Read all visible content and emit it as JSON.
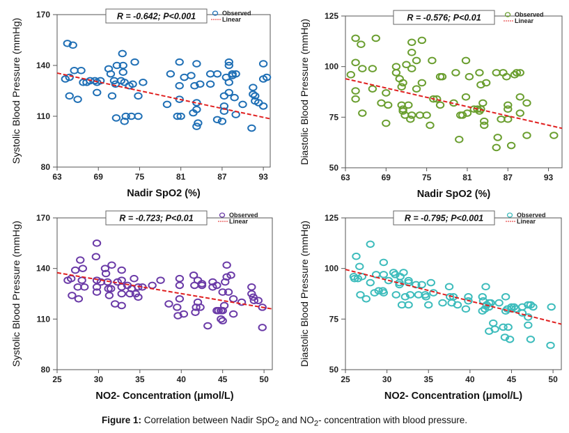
{
  "caption": {
    "label": "Figure 1:",
    "text_parts": [
      "Correlation between Nadir SpO",
      "2",
      " and NO",
      "2",
      "- concentration with blood pressure."
    ]
  },
  "legend": {
    "observed": "Observed",
    "linear": "Linear",
    "line_color": "#e02020"
  },
  "chart_data": [
    {
      "type": "scatter",
      "title": "",
      "annotation": "R = -0.642; P<0.001",
      "xlabel": "Nadir SpO2 (%)",
      "ylabel": "Systolic Blood Pressure (mmHg)",
      "xlim": [
        63,
        94
      ],
      "ylim": [
        80,
        170
      ],
      "xticks": [
        63,
        69,
        75,
        81,
        87,
        93
      ],
      "yticks": [
        80,
        110,
        140,
        170
      ],
      "color": "#1f6fb5",
      "legend": "top-right",
      "fit": {
        "x": [
          63,
          94
        ],
        "y": [
          135.5,
          108.5
        ]
      },
      "points": [
        [
          64.5,
          153
        ],
        [
          65.3,
          152
        ],
        [
          64.2,
          132
        ],
        [
          64.8,
          133
        ],
        [
          65.5,
          137
        ],
        [
          66.5,
          137
        ],
        [
          64.8,
          122
        ],
        [
          66.0,
          120
        ],
        [
          66.8,
          130
        ],
        [
          67.3,
          130
        ],
        [
          67.8,
          131
        ],
        [
          68.5,
          131
        ],
        [
          68.8,
          130
        ],
        [
          69.3,
          131
        ],
        [
          68.8,
          124
        ],
        [
          70.5,
          138
        ],
        [
          70.8,
          135
        ],
        [
          71.3,
          131
        ],
        [
          71.5,
          129
        ],
        [
          71.7,
          140
        ],
        [
          72.3,
          131
        ],
        [
          72.6,
          136
        ],
        [
          72.8,
          130
        ],
        [
          72.6,
          140
        ],
        [
          72.5,
          147
        ],
        [
          73.5,
          128
        ],
        [
          74.0,
          129
        ],
        [
          74.3,
          142
        ],
        [
          75.5,
          130
        ],
        [
          74.8,
          122
        ],
        [
          71.0,
          122
        ],
        [
          71.6,
          109
        ],
        [
          72.8,
          107
        ],
        [
          73.0,
          110
        ],
        [
          73.8,
          110
        ],
        [
          74.8,
          110
        ],
        [
          79.0,
          117
        ],
        [
          79.5,
          135
        ],
        [
          80.8,
          142
        ],
        [
          80.8,
          128
        ],
        [
          80.8,
          120
        ],
        [
          81.5,
          133
        ],
        [
          80.5,
          110
        ],
        [
          81.0,
          110
        ],
        [
          82.5,
          134
        ],
        [
          83.0,
          128
        ],
        [
          83.3,
          141
        ],
        [
          82.8,
          112
        ],
        [
          83.3,
          114
        ],
        [
          83.3,
          118
        ],
        [
          83.8,
          129
        ],
        [
          83.5,
          106
        ],
        [
          83.3,
          104
        ],
        [
          85.3,
          135
        ],
        [
          85.3,
          129
        ],
        [
          86.3,
          135
        ],
        [
          86.3,
          108
        ],
        [
          87.0,
          107
        ],
        [
          87.3,
          113
        ],
        [
          87.3,
          116
        ],
        [
          87.3,
          122
        ],
        [
          87.6,
          133
        ],
        [
          88.0,
          142
        ],
        [
          88.0,
          140
        ],
        [
          88.0,
          130
        ],
        [
          88.0,
          124
        ],
        [
          88.5,
          135
        ],
        [
          88.5,
          134
        ],
        [
          89.0,
          135
        ],
        [
          88.8,
          121
        ],
        [
          89.0,
          111
        ],
        [
          90.0,
          117
        ],
        [
          91.5,
          127
        ],
        [
          91.5,
          123
        ],
        [
          91.8,
          119
        ],
        [
          91.8,
          122
        ],
        [
          92.3,
          118
        ],
        [
          91.3,
          103
        ],
        [
          93.0,
          141
        ],
        [
          93.0,
          132
        ],
        [
          93.5,
          133
        ],
        [
          93.0,
          116
        ]
      ]
    },
    {
      "type": "scatter",
      "title": "",
      "annotation": "R = -0.576; P<0.01",
      "xlabel": "Nadir SpO2 (%)",
      "ylabel": "Diastolic Blood Pressure (mmHg)",
      "xlim": [
        63,
        95
      ],
      "ylim": [
        50,
        125
      ],
      "xticks": [
        63,
        69,
        75,
        81,
        87,
        93
      ],
      "yticks": [
        50,
        75,
        100,
        125
      ],
      "color": "#6a9e2f",
      "legend": "top-right",
      "fit": {
        "x": [
          63,
          95
        ],
        "y": [
          94,
          69.5
        ]
      },
      "points": [
        [
          64.5,
          114
        ],
        [
          65.3,
          111
        ],
        [
          67.5,
          114
        ],
        [
          63.8,
          96
        ],
        [
          64.5,
          102
        ],
        [
          65.5,
          99
        ],
        [
          67.0,
          99
        ],
        [
          64.5,
          88
        ],
        [
          64.5,
          84
        ],
        [
          65.5,
          77
        ],
        [
          67.0,
          89
        ],
        [
          68.3,
          82
        ],
        [
          69.0,
          87
        ],
        [
          69.3,
          81
        ],
        [
          69.0,
          72
        ],
        [
          70.5,
          100
        ],
        [
          70.5,
          97
        ],
        [
          71.0,
          94
        ],
        [
          71.3,
          90
        ],
        [
          71.5,
          92
        ],
        [
          71.3,
          81
        ],
        [
          71.5,
          79
        ],
        [
          71.5,
          78
        ],
        [
          71.8,
          76
        ],
        [
          72.0,
          101
        ],
        [
          72.3,
          81
        ],
        [
          72.8,
          112
        ],
        [
          72.8,
          107
        ],
        [
          72.8,
          99
        ],
        [
          72.8,
          76
        ],
        [
          72.6,
          74
        ],
        [
          73.5,
          103
        ],
        [
          73.5,
          89
        ],
        [
          74.0,
          76
        ],
        [
          74.3,
          113
        ],
        [
          74.3,
          92
        ],
        [
          75.0,
          76
        ],
        [
          75.5,
          71
        ],
        [
          75.8,
          103
        ],
        [
          76.0,
          84
        ],
        [
          76.5,
          84
        ],
        [
          77.0,
          81
        ],
        [
          77.0,
          95
        ],
        [
          77.3,
          95
        ],
        [
          79.0,
          82
        ],
        [
          79.3,
          97
        ],
        [
          79.8,
          64
        ],
        [
          80.0,
          76
        ],
        [
          80.3,
          76
        ],
        [
          80.8,
          103
        ],
        [
          80.8,
          85
        ],
        [
          81.0,
          77
        ],
        [
          81.3,
          95
        ],
        [
          82.0,
          79
        ],
        [
          82.5,
          79
        ],
        [
          82.8,
          78
        ],
        [
          82.8,
          97
        ],
        [
          83.0,
          91
        ],
        [
          83.0,
          79
        ],
        [
          83.3,
          82
        ],
        [
          83.5,
          73
        ],
        [
          83.5,
          71
        ],
        [
          83.8,
          92
        ],
        [
          85.3,
          97
        ],
        [
          85.5,
          65
        ],
        [
          85.3,
          60
        ],
        [
          86.0,
          74
        ],
        [
          86.3,
          97
        ],
        [
          86.8,
          95
        ],
        [
          87.0,
          79
        ],
        [
          87.0,
          81
        ],
        [
          87.0,
          74
        ],
        [
          87.5,
          61
        ],
        [
          88.0,
          96
        ],
        [
          88.3,
          97
        ],
        [
          88.8,
          97
        ],
        [
          88.8,
          85
        ],
        [
          88.8,
          77
        ],
        [
          89.8,
          82
        ],
        [
          89.8,
          66
        ],
        [
          93.8,
          66
        ]
      ]
    },
    {
      "type": "scatter",
      "title": "",
      "annotation": "R = -0.723; P<0.01",
      "xlabel": "NO2- Concentration (μmol/L)",
      "ylabel": "Systolic Blood Pressure (mmHg)",
      "xlim": [
        25,
        51
      ],
      "ylim": [
        80,
        170
      ],
      "xticks": [
        25,
        30,
        35,
        40,
        45,
        50
      ],
      "yticks": [
        80,
        110,
        140,
        170
      ],
      "color": "#6a3aa7",
      "legend": "top-right",
      "fit": {
        "x": [
          25,
          51
        ],
        "y": [
          137.5,
          116
        ]
      },
      "points": [
        [
          26.3,
          133
        ],
        [
          26.7,
          134
        ],
        [
          27.2,
          139
        ],
        [
          27.5,
          129
        ],
        [
          27.6,
          122
        ],
        [
          27.8,
          145
        ],
        [
          28.0,
          133
        ],
        [
          28.1,
          140
        ],
        [
          28.3,
          129
        ],
        [
          26.8,
          124
        ],
        [
          29.8,
          155
        ],
        [
          29.7,
          147
        ],
        [
          29.8,
          133
        ],
        [
          29.8,
          129
        ],
        [
          29.8,
          126
        ],
        [
          30.3,
          132
        ],
        [
          30.8,
          140
        ],
        [
          30.9,
          137
        ],
        [
          31.1,
          132
        ],
        [
          31.2,
          128
        ],
        [
          31.3,
          124
        ],
        [
          31.5,
          128
        ],
        [
          31.6,
          142
        ],
        [
          32.0,
          119
        ],
        [
          32.3,
          132
        ],
        [
          32.8,
          139
        ],
        [
          32.8,
          133
        ],
        [
          32.8,
          129
        ],
        [
          32.8,
          125
        ],
        [
          32.8,
          118
        ],
        [
          33.5,
          130
        ],
        [
          33.8,
          125
        ],
        [
          34.0,
          128
        ],
        [
          34.3,
          134
        ],
        [
          34.5,
          125
        ],
        [
          34.8,
          123
        ],
        [
          34.8,
          129
        ],
        [
          35.3,
          129
        ],
        [
          36.5,
          130
        ],
        [
          37.5,
          133
        ],
        [
          38.5,
          119
        ],
        [
          39.5,
          117
        ],
        [
          39.6,
          112
        ],
        [
          39.8,
          134
        ],
        [
          39.8,
          130
        ],
        [
          39.8,
          122
        ],
        [
          40.3,
          113
        ],
        [
          41.5,
          136
        ],
        [
          41.6,
          130
        ],
        [
          41.7,
          114
        ],
        [
          41.8,
          117
        ],
        [
          42.0,
          133
        ],
        [
          42.0,
          120
        ],
        [
          42.3,
          117
        ],
        [
          42.5,
          130
        ],
        [
          42.5,
          131
        ],
        [
          43.2,
          106
        ],
        [
          43.8,
          132
        ],
        [
          43.8,
          129
        ],
        [
          44.3,
          130
        ],
        [
          44.3,
          115
        ],
        [
          44.5,
          115
        ],
        [
          44.8,
          115
        ],
        [
          44.8,
          110
        ],
        [
          45.0,
          126
        ],
        [
          45.0,
          109
        ],
        [
          45.0,
          115
        ],
        [
          45.2,
          118
        ],
        [
          45.3,
          132
        ],
        [
          45.5,
          142
        ],
        [
          45.5,
          135
        ],
        [
          45.7,
          126
        ],
        [
          46.0,
          136
        ],
        [
          46.3,
          122
        ],
        [
          46.3,
          113
        ],
        [
          47.3,
          120
        ],
        [
          48.5,
          129
        ],
        [
          48.5,
          125
        ],
        [
          48.7,
          123
        ],
        [
          48.8,
          121
        ],
        [
          49.3,
          121
        ],
        [
          49.8,
          117
        ],
        [
          49.8,
          105
        ]
      ]
    },
    {
      "type": "scatter",
      "title": "",
      "annotation": "R = -0.795; P<0.001",
      "xlabel": "NO2- Concentration (μmol/L)",
      "ylabel": "Diastolic Blood Pressure (mmHg)",
      "xlim": [
        25,
        51
      ],
      "ylim": [
        50,
        125
      ],
      "xticks": [
        25,
        30,
        35,
        40,
        45,
        50
      ],
      "yticks": [
        50,
        75,
        100,
        125
      ],
      "color": "#3dbcbc",
      "legend": "top-right",
      "fit": {
        "x": [
          25,
          51
        ],
        "y": [
          99.5,
          72.5
        ]
      },
      "points": [
        [
          26.0,
          96
        ],
        [
          26.1,
          95
        ],
        [
          26.3,
          106
        ],
        [
          26.5,
          95
        ],
        [
          26.7,
          101
        ],
        [
          26.8,
          87
        ],
        [
          27.0,
          96
        ],
        [
          27.5,
          85
        ],
        [
          28.0,
          112
        ],
        [
          28.0,
          93
        ],
        [
          28.5,
          88
        ],
        [
          28.7,
          97
        ],
        [
          29.0,
          89
        ],
        [
          29.5,
          89
        ],
        [
          29.6,
          103
        ],
        [
          29.6,
          97
        ],
        [
          29.6,
          88
        ],
        [
          30.2,
          94
        ],
        [
          30.8,
          98
        ],
        [
          31.0,
          97
        ],
        [
          31.1,
          87
        ],
        [
          31.5,
          93
        ],
        [
          31.5,
          92
        ],
        [
          31.6,
          96
        ],
        [
          31.8,
          82
        ],
        [
          32.0,
          98
        ],
        [
          32.2,
          86
        ],
        [
          32.6,
          82
        ],
        [
          32.6,
          94
        ],
        [
          32.6,
          93
        ],
        [
          32.8,
          87
        ],
        [
          33.5,
          92
        ],
        [
          33.8,
          87
        ],
        [
          34.2,
          92
        ],
        [
          34.6,
          87
        ],
        [
          34.7,
          86
        ],
        [
          35.0,
          82
        ],
        [
          35.3,
          93
        ],
        [
          35.6,
          88
        ],
        [
          36.7,
          83
        ],
        [
          37.5,
          91
        ],
        [
          37.6,
          86
        ],
        [
          37.8,
          83
        ],
        [
          38.0,
          86
        ],
        [
          38.5,
          82
        ],
        [
          39.5,
          80
        ],
        [
          39.8,
          86
        ],
        [
          39.8,
          84
        ],
        [
          41.5,
          86
        ],
        [
          41.5,
          79
        ],
        [
          41.6,
          84
        ],
        [
          41.8,
          80
        ],
        [
          41.9,
          91
        ],
        [
          42.0,
          82
        ],
        [
          42.3,
          81
        ],
        [
          42.3,
          83
        ],
        [
          42.5,
          83
        ],
        [
          42.3,
          69
        ],
        [
          42.8,
          73
        ],
        [
          43.0,
          70
        ],
        [
          43.5,
          83
        ],
        [
          44.0,
          71
        ],
        [
          44.2,
          66
        ],
        [
          44.3,
          86
        ],
        [
          44.3,
          79
        ],
        [
          44.5,
          80
        ],
        [
          44.6,
          71
        ],
        [
          44.8,
          65
        ],
        [
          45.0,
          81
        ],
        [
          45.0,
          80
        ],
        [
          45.3,
          81
        ],
        [
          45.5,
          80
        ],
        [
          46.3,
          81
        ],
        [
          46.3,
          78
        ],
        [
          47.0,
          76
        ],
        [
          47.0,
          72
        ],
        [
          47.0,
          82
        ],
        [
          47.3,
          82
        ],
        [
          47.3,
          65
        ],
        [
          47.6,
          81
        ],
        [
          49.8,
          81
        ],
        [
          49.7,
          62
        ]
      ]
    }
  ]
}
